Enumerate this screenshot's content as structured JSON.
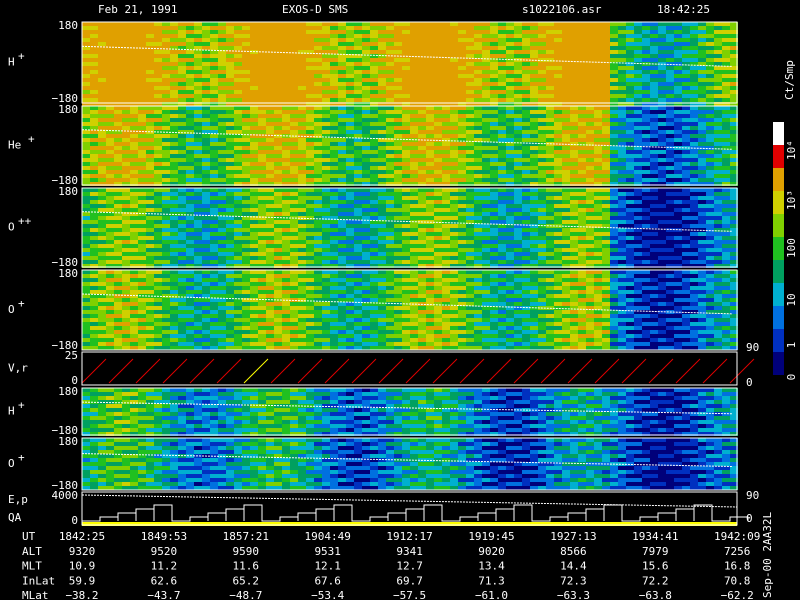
{
  "header": {
    "date": "Feb 21, 1991",
    "instrument": "EXOS-D SMS",
    "file": "s1022106.asr",
    "time": "18:42:25"
  },
  "panels": [
    {
      "label": "H",
      "sup": "+",
      "top": "180",
      "bottom": "−180"
    },
    {
      "label": "He",
      "sup": "+",
      "top": "180",
      "bottom": "−180"
    },
    {
      "label": "O",
      "sup": "++",
      "top": "180",
      "bottom": "−180"
    },
    {
      "label": "O",
      "sup": "+",
      "top": "180",
      "bottom": "−180",
      "right": "90"
    },
    {
      "label": "V,r",
      "top": "25",
      "bottom": "0",
      "right": "0"
    },
    {
      "label": "H",
      "sup": "+",
      "top": "180",
      "bottom": "−180"
    },
    {
      "label": "O",
      "sup": "+",
      "top": "180",
      "bottom": "−180"
    },
    {
      "label": "E,p",
      "label2": "QA",
      "top": "4000",
      "bottom": "0",
      "right": "90",
      "right2": "0"
    }
  ],
  "colorbar": {
    "unit": "Ct/Smp",
    "labels": [
      "10⁴",
      "10³",
      "100",
      "10",
      "1",
      "0"
    ]
  },
  "table": {
    "rows": [
      {
        "name": "UT",
        "cells": [
          "1842:25",
          "1849:53",
          "1857:21",
          "1904:49",
          "1912:17",
          "1919:45",
          "1927:13",
          "1934:41",
          "1942:09"
        ]
      },
      {
        "name": "ALT",
        "cells": [
          "9320",
          "9520",
          "9590",
          "9531",
          "9341",
          "9020",
          "8566",
          "7979",
          "7256"
        ]
      },
      {
        "name": "MLT",
        "cells": [
          "10.9",
          "11.2",
          "11.6",
          "12.1",
          "12.7",
          "13.4",
          "14.4",
          "15.6",
          "16.8"
        ]
      },
      {
        "name": "InLat",
        "cells": [
          "59.9",
          "62.6",
          "65.2",
          "67.6",
          "69.7",
          "71.3",
          "72.3",
          "72.2",
          "70.8"
        ]
      },
      {
        "name": "MLat",
        "cells": [
          "−38.2",
          "−43.7",
          "−48.7",
          "−53.4",
          "−57.5",
          "−61.0",
          "−63.3",
          "−63.8",
          "−62.2"
        ]
      }
    ]
  },
  "footer": {
    "code": "Sep-00  2AA32L"
  }
}
